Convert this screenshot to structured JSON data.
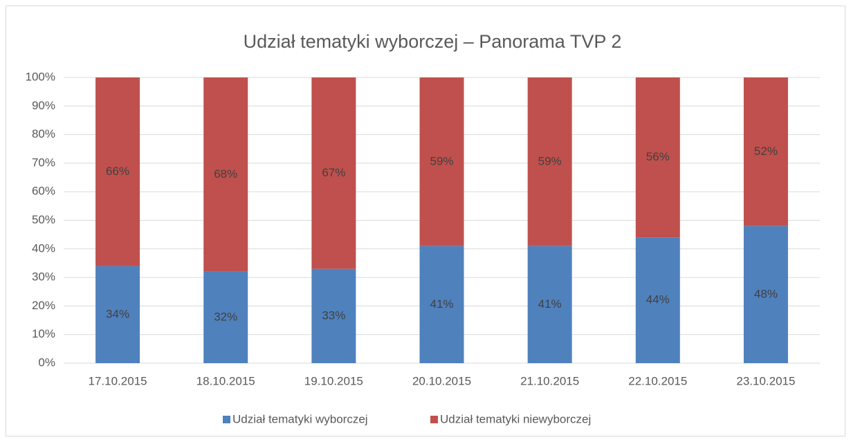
{
  "chart_data": {
    "type": "stacked_bar",
    "title": "Udział tematyki wyborczej – Panorama TVP 2",
    "categories": [
      "17.10.2015",
      "18.10.2015",
      "19.10.2015",
      "20.10.2015",
      "21.10.2015",
      "22.10.2015",
      "23.10.2015"
    ],
    "series": [
      {
        "name": "Udział tematyki wyborczej",
        "color": "#4f81bd",
        "values": [
          34,
          32,
          33,
          41,
          41,
          44,
          48
        ],
        "value_labels": [
          "34%",
          "32%",
          "33%",
          "41%",
          "41%",
          "44%",
          "48%"
        ]
      },
      {
        "name": "Udział tematyki niewyborczej",
        "color": "#c0504d",
        "values": [
          66,
          68,
          67,
          59,
          59,
          56,
          52
        ],
        "value_labels": [
          "66%",
          "68%",
          "67%",
          "59%",
          "59%",
          "56%",
          "52%"
        ]
      }
    ],
    "ylim": [
      0,
      100
    ],
    "yticks": [
      {
        "value": 0,
        "label": "0%"
      },
      {
        "value": 10,
        "label": "10%"
      },
      {
        "value": 20,
        "label": "20%"
      },
      {
        "value": 30,
        "label": "30%"
      },
      {
        "value": 40,
        "label": "40%"
      },
      {
        "value": 50,
        "label": "50%"
      },
      {
        "value": 60,
        "label": "60%"
      },
      {
        "value": 70,
        "label": "70%"
      },
      {
        "value": 80,
        "label": "80%"
      },
      {
        "value": 90,
        "label": "90%"
      },
      {
        "value": 100,
        "label": "100%"
      }
    ],
    "grid": true,
    "legend": "bottom"
  }
}
